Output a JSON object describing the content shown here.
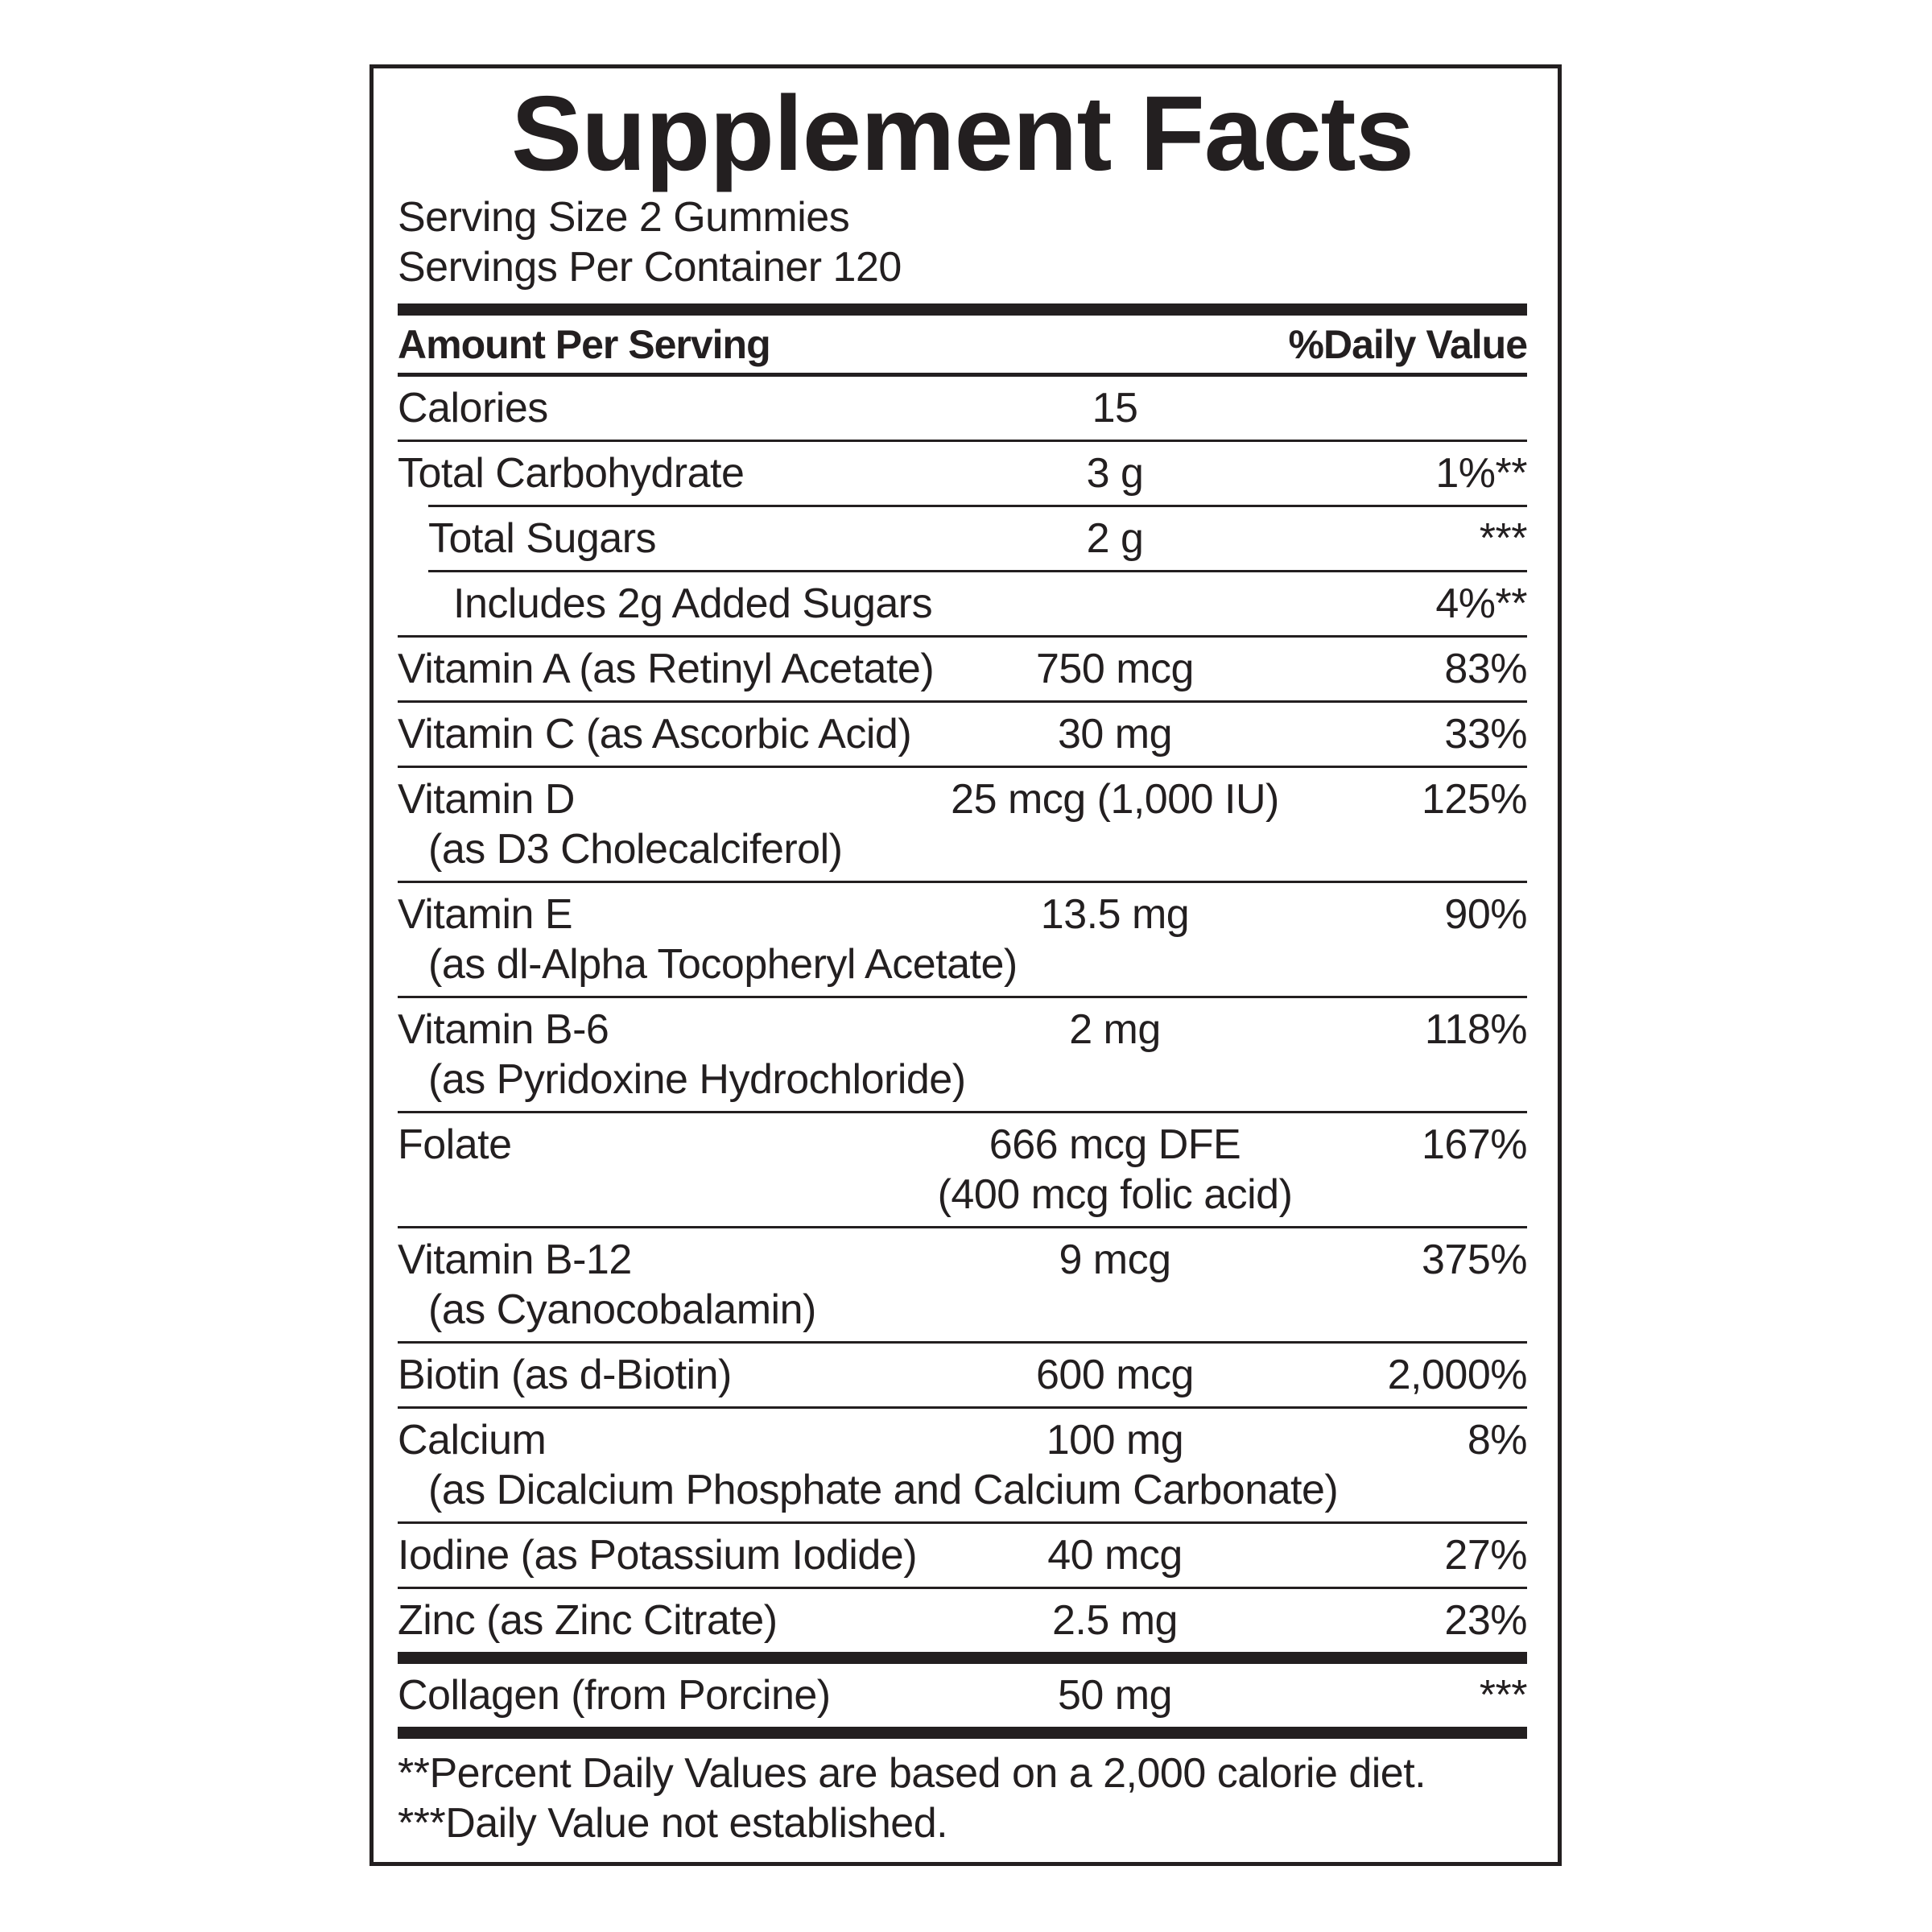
{
  "header": {
    "title": "Supplement Facts",
    "serving_size": "Serving Size 2 Gummies",
    "servings_per_container": "Servings Per Container 120"
  },
  "table": {
    "amount_heading": "Amount Per Serving",
    "dv_heading": "%Daily Value",
    "rows": [
      {
        "name": "Calories",
        "amount": "15"
      },
      {
        "name": "Total Carbohydrate",
        "amount": "3 g",
        "dv": "1%**",
        "subrows": [
          {
            "name": "Total Sugars",
            "amount": "2 g",
            "dv": "***",
            "subrows": [
              {
                "name": "Includes 2g Added Sugars",
                "dv": "4%**"
              }
            ]
          }
        ]
      },
      {
        "name": "Vitamin A (as Retinyl Acetate)",
        "amount": "750 mcg",
        "dv": "83%"
      },
      {
        "name": "Vitamin C (as Ascorbic Acid)",
        "amount": "30 mg",
        "dv": "33%"
      },
      {
        "name": "Vitamin D",
        "name_detail": "(as D3 Cholecalciferol)",
        "amount": "25 mcg (1,000 IU)",
        "dv": "125%"
      },
      {
        "name": "Vitamin E",
        "name_detail": "(as dl-Alpha Tocopheryl Acetate)",
        "amount": "13.5 mg",
        "dv": "90%"
      },
      {
        "name": "Vitamin B-6",
        "name_detail": "(as Pyridoxine Hydrochloride)",
        "amount": "2 mg",
        "dv": "118%"
      },
      {
        "name": "Folate",
        "amount": "666 mcg DFE",
        "amount_detail": "(400 mcg folic acid)",
        "dv": "167%"
      },
      {
        "name": "Vitamin B-12",
        "name_detail": "(as Cyanocobalamin)",
        "amount": "9 mcg",
        "dv": "375%"
      },
      {
        "name": "Biotin (as d-Biotin)",
        "amount": "600 mcg",
        "dv": "2,000%"
      },
      {
        "name": "Calcium",
        "name_detail": "(as Dicalcium Phosphate and Calcium Carbonate)",
        "amount": "100 mg",
        "dv": "8%"
      },
      {
        "name": "Iodine (as Potassium Iodide)",
        "amount": "40 mcg",
        "dv": "27%"
      },
      {
        "name": "Zinc (as Zinc Citrate)",
        "amount": "2.5 mg",
        "dv": "23%"
      }
    ],
    "other_rows": [
      {
        "name": "Collagen (from Porcine)",
        "amount": "50 mg",
        "dv": "***"
      }
    ]
  },
  "footnotes": [
    "**Percent Daily Values are based on a 2,000 calorie diet.",
    "***Daily Value not established."
  ]
}
